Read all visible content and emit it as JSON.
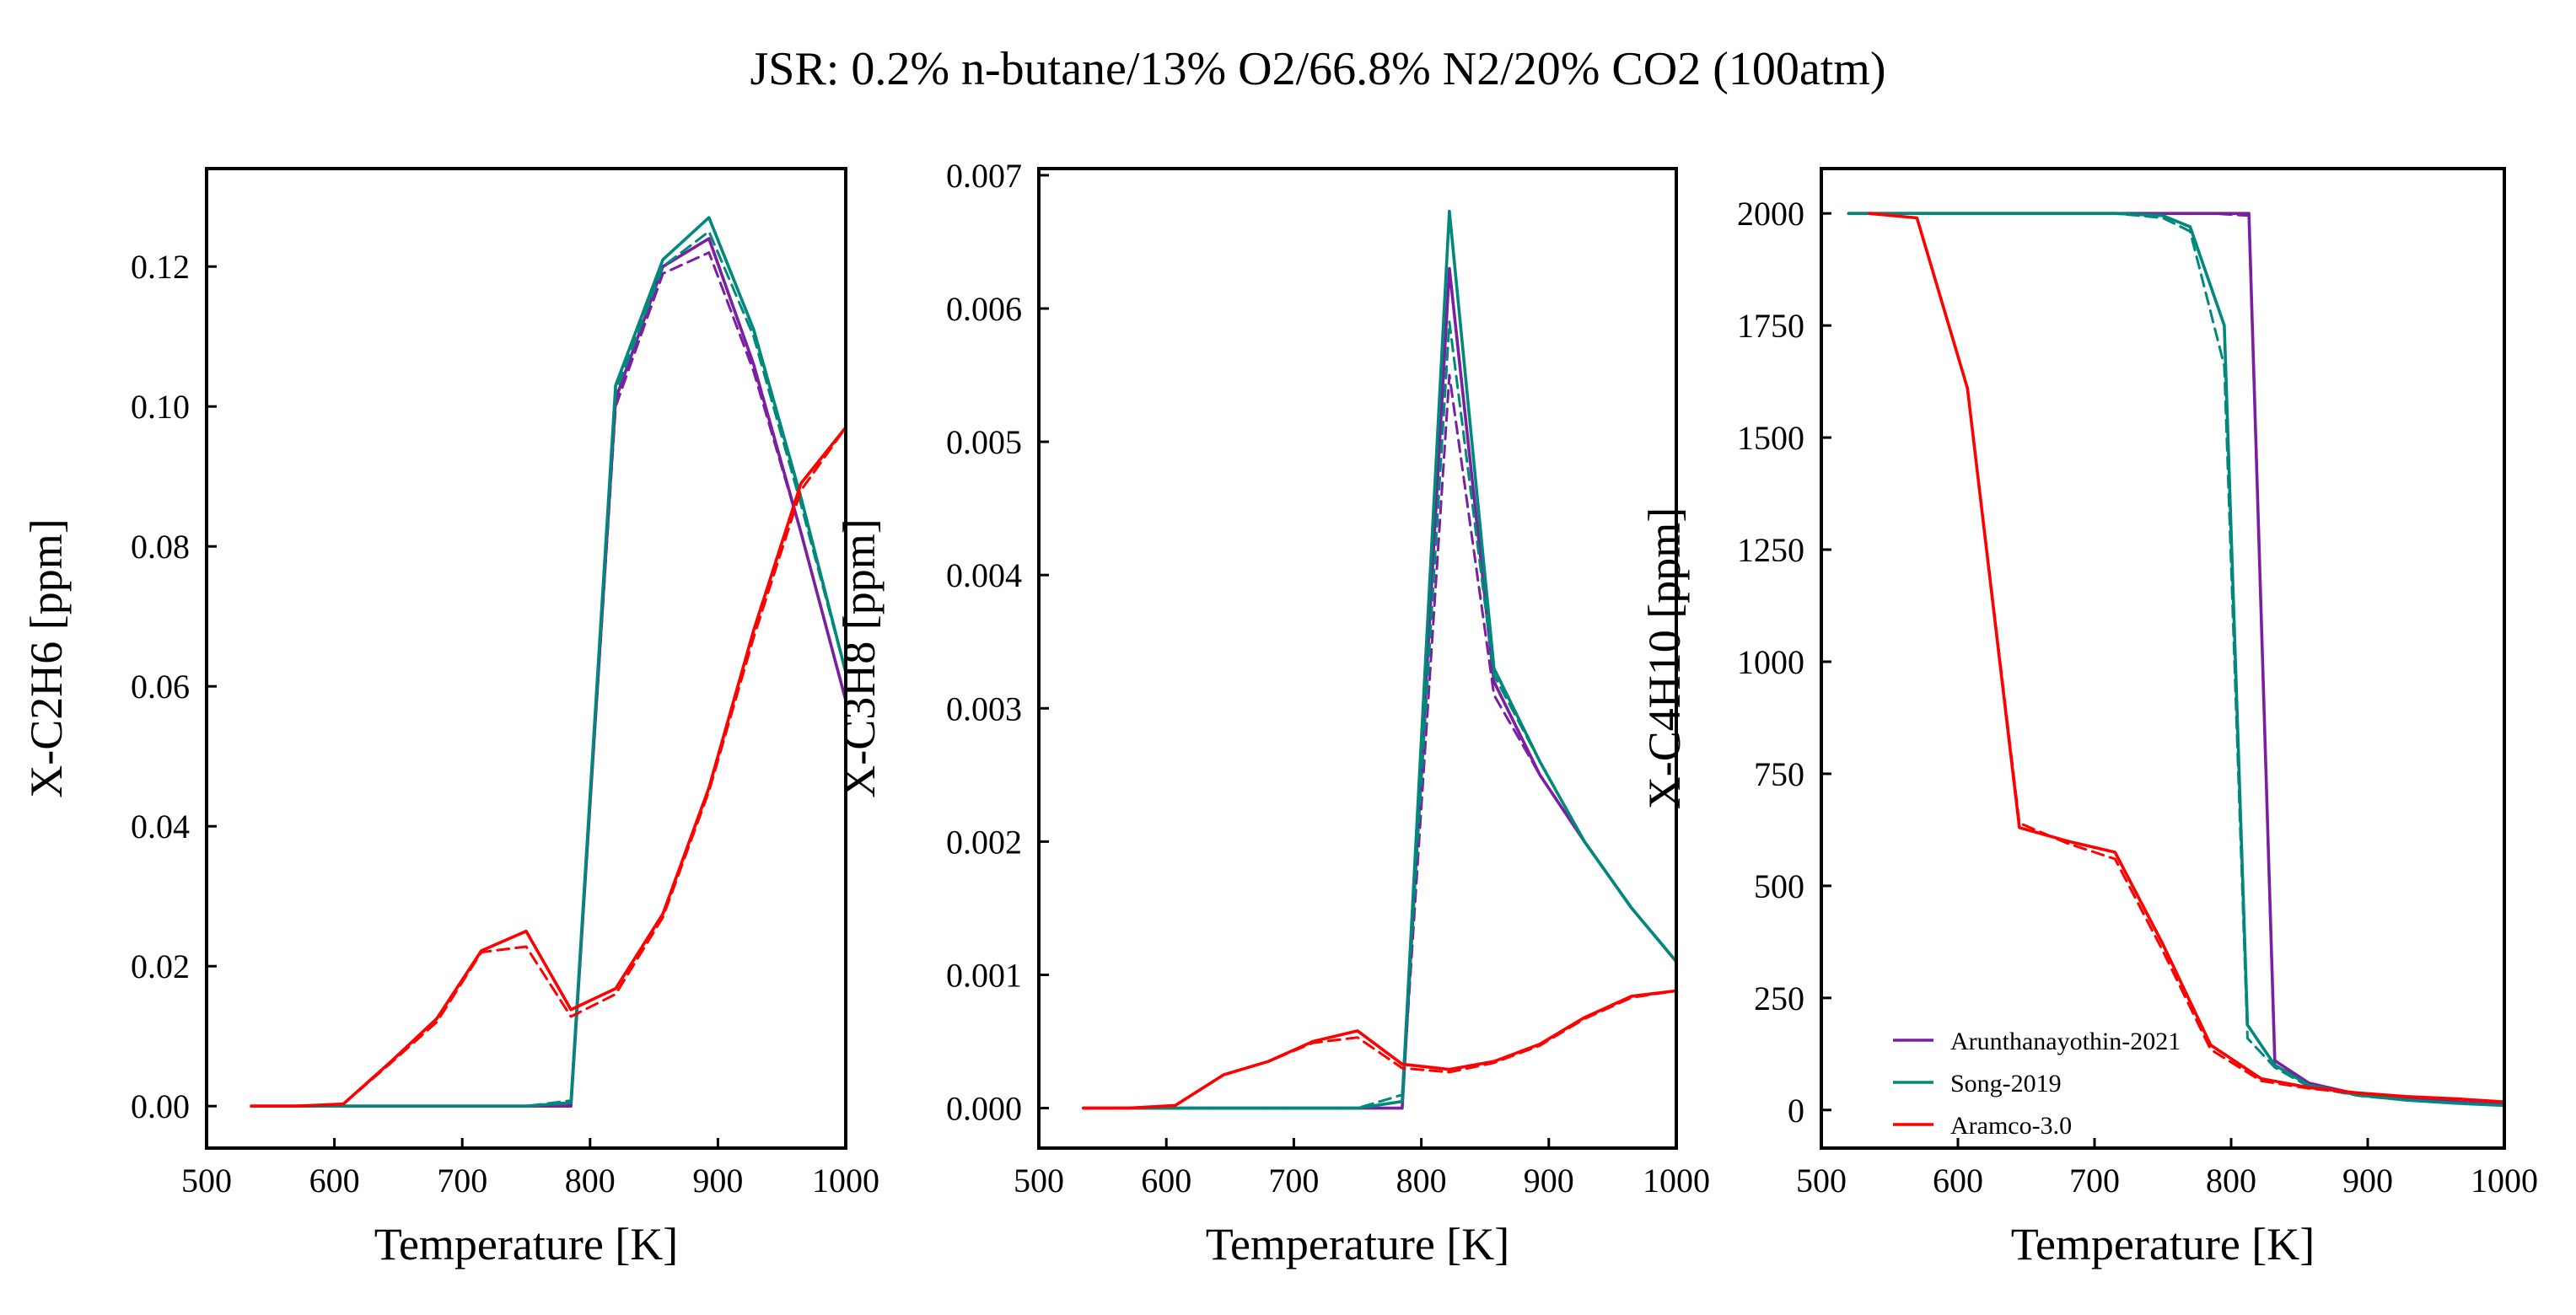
{
  "figure": {
    "title": "JSR: 0.2% n-butane/13% O2/66.8% N2/20% CO2 (100atm)"
  },
  "colors": {
    "Arunthanayothin-2021": "#7b1fa2",
    "Song-2019": "#00897b",
    "Aramco-3.0": "#ff0000"
  },
  "chart_data": [
    {
      "type": "line",
      "xlabel": "Temperature [K]",
      "ylabel": "X-C2H6 [ppm]",
      "xlim": [
        500,
        1000
      ],
      "ylim": [
        -0.006,
        0.134
      ],
      "xticks": [
        500,
        600,
        700,
        800,
        900,
        1000
      ],
      "xtick_labels": [
        "500",
        "600",
        "700",
        "800",
        "900",
        "1000"
      ],
      "yticks": [
        0,
        0.02,
        0.04,
        0.06,
        0.08,
        0.1,
        0.12
      ],
      "ytick_labels": [
        "0.00",
        "0.02",
        "0.04",
        "0.06",
        "0.08",
        "0.10",
        "0.12"
      ],
      "legend": false,
      "series": [
        {
          "name": "Arunthanayothin-2021",
          "style": "solid",
          "x": [
            535,
            570,
            607,
            645,
            680,
            715,
            750,
            785,
            820,
            857,
            893,
            928,
            965,
            1000
          ],
          "y": [
            0,
            0,
            0,
            0,
            0,
            0,
            0,
            0,
            0.101,
            0.12,
            0.124,
            0.106,
            0.082,
            0.058
          ]
        },
        {
          "name": "Arunthanayothin-2021",
          "style": "dashed",
          "x": [
            535,
            570,
            607,
            645,
            680,
            715,
            750,
            785,
            820,
            857,
            893,
            928,
            965,
            1000
          ],
          "y": [
            0,
            0,
            0,
            0,
            0,
            0,
            0,
            0.0003,
            0.1,
            0.119,
            0.122,
            0.105,
            0.082,
            0.058
          ]
        },
        {
          "name": "Song-2019",
          "style": "solid",
          "x": [
            535,
            570,
            607,
            645,
            680,
            715,
            750,
            785,
            820,
            857,
            893,
            928,
            965,
            1000
          ],
          "y": [
            0,
            0,
            0,
            0,
            0,
            0,
            0,
            0.0005,
            0.103,
            0.121,
            0.127,
            0.111,
            0.087,
            0.062
          ]
        },
        {
          "name": "Song-2019",
          "style": "dashed",
          "x": [
            535,
            570,
            607,
            645,
            680,
            715,
            750,
            785,
            820,
            857,
            893,
            928,
            965,
            1000
          ],
          "y": [
            0,
            0,
            0,
            0,
            0,
            0,
            0,
            0.0008,
            0.102,
            0.12,
            0.125,
            0.11,
            0.086,
            0.062
          ]
        },
        {
          "name": "Aramco-3.0",
          "style": "solid",
          "x": [
            535,
            570,
            607,
            645,
            680,
            715,
            750,
            785,
            820,
            857,
            893,
            928,
            965,
            1000
          ],
          "y": [
            0,
            0,
            0.0003,
            0.0065,
            0.0125,
            0.0222,
            0.025,
            0.0138,
            0.0168,
            0.0275,
            0.0455,
            0.068,
            0.089,
            0.097
          ]
        },
        {
          "name": "Aramco-3.0",
          "style": "dashed",
          "x": [
            535,
            570,
            607,
            645,
            680,
            715,
            750,
            785,
            820,
            857,
            893,
            928,
            965,
            1000
          ],
          "y": [
            0,
            0,
            0.0003,
            0.0063,
            0.012,
            0.022,
            0.0228,
            0.0128,
            0.016,
            0.027,
            0.045,
            0.067,
            0.088,
            0.097
          ]
        }
      ]
    },
    {
      "type": "line",
      "xlabel": "Temperature [K]",
      "ylabel": "X-C3H8 [ppm]",
      "xlim": [
        500,
        1000
      ],
      "ylim": [
        -0.0003,
        0.00705
      ],
      "xticks": [
        500,
        600,
        700,
        800,
        900,
        1000
      ],
      "xtick_labels": [
        "500",
        "600",
        "700",
        "800",
        "900",
        "1000"
      ],
      "yticks": [
        0,
        0.001,
        0.002,
        0.003,
        0.004,
        0.005,
        0.006,
        0.007
      ],
      "ytick_labels": [
        "0.000",
        "0.001",
        "0.002",
        "0.003",
        "0.004",
        "0.005",
        "0.006",
        "0.007"
      ],
      "legend": false,
      "series": [
        {
          "name": "Arunthanayothin-2021",
          "style": "solid",
          "x": [
            535,
            570,
            607,
            645,
            680,
            715,
            750,
            785,
            822,
            857,
            893,
            928,
            965,
            1000
          ],
          "y": [
            0,
            0,
            0,
            0,
            0,
            0,
            0,
            0,
            0.0063,
            0.0032,
            0.0025,
            0.002,
            0.0015,
            0.0011
          ]
        },
        {
          "name": "Arunthanayothin-2021",
          "style": "dashed",
          "x": [
            535,
            570,
            607,
            645,
            680,
            715,
            750,
            785,
            822,
            857,
            893,
            928,
            965,
            1000
          ],
          "y": [
            0,
            0,
            0,
            0,
            0,
            0,
            0,
            5e-05,
            0.0055,
            0.0031,
            0.0025,
            0.002,
            0.0015,
            0.0011
          ]
        },
        {
          "name": "Song-2019",
          "style": "solid",
          "x": [
            535,
            570,
            607,
            645,
            680,
            715,
            750,
            785,
            822,
            857,
            893,
            928,
            965,
            1000
          ],
          "y": [
            0,
            0,
            0,
            0,
            0,
            0,
            0,
            5e-05,
            0.00673,
            0.0033,
            0.0026,
            0.002,
            0.0015,
            0.0011
          ]
        },
        {
          "name": "Song-2019",
          "style": "dashed",
          "x": [
            535,
            570,
            607,
            645,
            680,
            715,
            750,
            785,
            822,
            857,
            893,
            928,
            965,
            1000
          ],
          "y": [
            0,
            0,
            0,
            0,
            0,
            0,
            0,
            0.0001,
            0.0059,
            0.00325,
            0.0026,
            0.002,
            0.0015,
            0.0011
          ]
        },
        {
          "name": "Aramco-3.0",
          "style": "solid",
          "x": [
            535,
            570,
            607,
            645,
            680,
            715,
            750,
            785,
            822,
            857,
            893,
            928,
            965,
            1000
          ],
          "y": [
            0,
            0,
            2e-05,
            0.00025,
            0.00035,
            0.0005,
            0.00058,
            0.00033,
            0.00029,
            0.00035,
            0.00048,
            0.00068,
            0.00084,
            0.00088
          ]
        },
        {
          "name": "Aramco-3.0",
          "style": "dashed",
          "x": [
            535,
            570,
            607,
            645,
            680,
            715,
            750,
            785,
            822,
            857,
            893,
            928,
            965,
            1000
          ],
          "y": [
            0,
            0,
            2e-05,
            0.00025,
            0.00035,
            0.00049,
            0.00053,
            0.0003,
            0.00027,
            0.00034,
            0.00047,
            0.00067,
            0.00083,
            0.00088
          ]
        }
      ]
    },
    {
      "type": "line",
      "xlabel": "Temperature [K]",
      "ylabel": "X-C4H10 [ppm]",
      "xlim": [
        500,
        1000
      ],
      "ylim": [
        -85,
        2100
      ],
      "xticks": [
        500,
        600,
        700,
        800,
        900,
        1000
      ],
      "xtick_labels": [
        "500",
        "600",
        "700",
        "800",
        "900",
        "1000"
      ],
      "yticks": [
        0,
        250,
        500,
        750,
        1000,
        1250,
        1500,
        1750,
        2000
      ],
      "ytick_labels": [
        "0",
        "250",
        "500",
        "750",
        "1000",
        "1250",
        "1500",
        "1750",
        "2000"
      ],
      "legend": true,
      "legend_loc": "lower-left",
      "legend_entries": [
        "Arunthanayothin-2021",
        "Song-2019",
        "Aramco-3.0"
      ],
      "series": [
        {
          "name": "Arunthanayothin-2021",
          "style": "solid",
          "x": [
            520,
            570,
            607,
            645,
            680,
            715,
            750,
            785,
            813,
            832,
            857,
            893,
            928,
            965,
            1000
          ],
          "y": [
            2000,
            2000,
            2000,
            2000,
            2000,
            2000,
            2000,
            2000,
            2000,
            110,
            60,
            35,
            25,
            18,
            12
          ]
        },
        {
          "name": "Arunthanayothin-2021",
          "style": "dashed",
          "x": [
            520,
            570,
            607,
            645,
            680,
            715,
            750,
            785,
            813,
            832,
            857,
            893,
            928,
            965,
            1000
          ],
          "y": [
            2000,
            2000,
            2000,
            2000,
            2000,
            2000,
            2000,
            2000,
            1995,
            100,
            58,
            34,
            24,
            17,
            12
          ]
        },
        {
          "name": "Song-2019",
          "style": "solid",
          "x": [
            520,
            570,
            607,
            645,
            680,
            715,
            750,
            770,
            795,
            812,
            832,
            857,
            893,
            928,
            965,
            1000
          ],
          "y": [
            2000,
            2000,
            2000,
            2000,
            2000,
            2000,
            1995,
            1970,
            1750,
            190,
            100,
            55,
            33,
            22,
            15,
            10
          ]
        },
        {
          "name": "Song-2019",
          "style": "dashed",
          "x": [
            520,
            570,
            607,
            645,
            680,
            715,
            750,
            770,
            795,
            812,
            832,
            857,
            893,
            928,
            965,
            1000
          ],
          "y": [
            2000,
            2000,
            2000,
            2000,
            2000,
            2000,
            1990,
            1960,
            1660,
            160,
            95,
            52,
            32,
            22,
            15,
            10
          ]
        },
        {
          "name": "Aramco-3.0",
          "style": "solid",
          "x": [
            535,
            570,
            607,
            645,
            680,
            715,
            750,
            785,
            822,
            857,
            893,
            928,
            965,
            1000
          ],
          "y": [
            2000,
            1990,
            1610,
            630,
            600,
            575,
            370,
            145,
            70,
            50,
            38,
            30,
            25,
            18
          ]
        },
        {
          "name": "Aramco-3.0",
          "style": "dashed",
          "x": [
            535,
            570,
            607,
            645,
            680,
            715,
            750,
            785,
            822,
            857,
            893,
            928,
            965,
            1000
          ],
          "y": [
            2000,
            1990,
            1610,
            640,
            595,
            560,
            355,
            135,
            65,
            48,
            37,
            30,
            24,
            18
          ]
        }
      ]
    }
  ]
}
